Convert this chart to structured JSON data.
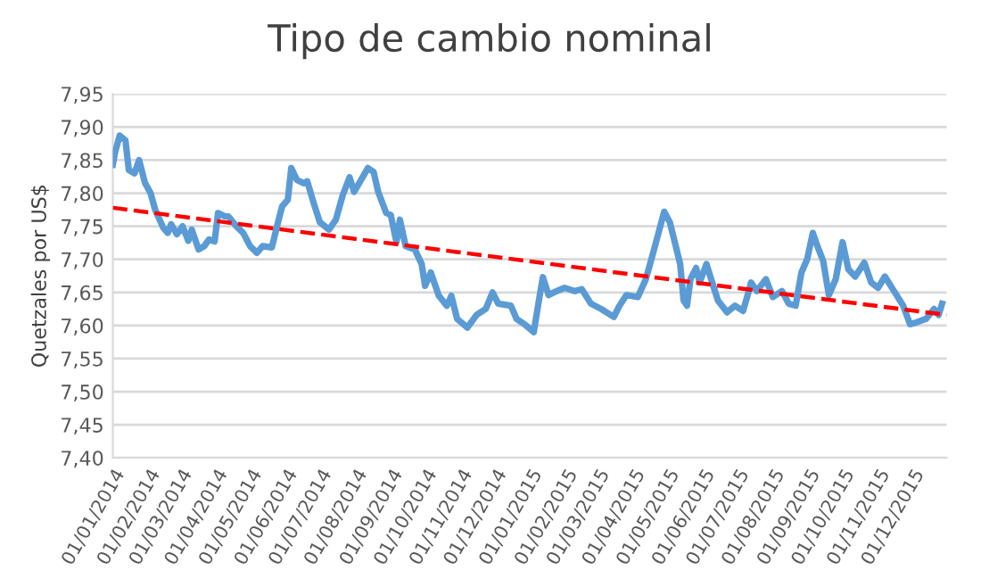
{
  "chart_data": {
    "type": "line",
    "title": "Tipo de cambio nominal",
    "ylabel": "Quetzales por US$",
    "xlim": [
      "2014-01-01",
      "2015-12-31"
    ],
    "xticks": [
      {
        "value": "2014-01-01",
        "label": "01/01/2014"
      },
      {
        "value": "2014-02-01",
        "label": "01/02/2014"
      },
      {
        "value": "2014-03-01",
        "label": "01/03/2014"
      },
      {
        "value": "2014-04-01",
        "label": "01/04/2014"
      },
      {
        "value": "2014-05-01",
        "label": "01/05/2014"
      },
      {
        "value": "2014-06-01",
        "label": "01/06/2014"
      },
      {
        "value": "2014-07-01",
        "label": "01/07/2014"
      },
      {
        "value": "2014-08-01",
        "label": "01/08/2014"
      },
      {
        "value": "2014-09-01",
        "label": "01/09/2014"
      },
      {
        "value": "2014-10-01",
        "label": "01/10/2014"
      },
      {
        "value": "2014-11-01",
        "label": "01/11/2014"
      },
      {
        "value": "2014-12-01",
        "label": "01/12/2014"
      },
      {
        "value": "2015-01-01",
        "label": "01/01/2015"
      },
      {
        "value": "2015-02-01",
        "label": "01/02/2015"
      },
      {
        "value": "2015-03-01",
        "label": "01/03/2015"
      },
      {
        "value": "2015-04-01",
        "label": "01/04/2015"
      },
      {
        "value": "2015-05-01",
        "label": "01/05/2015"
      },
      {
        "value": "2015-06-01",
        "label": "01/06/2015"
      },
      {
        "value": "2015-07-01",
        "label": "01/07/2015"
      },
      {
        "value": "2015-08-01",
        "label": "01/08/2015"
      },
      {
        "value": "2015-09-01",
        "label": "01/09/2015"
      },
      {
        "value": "2015-10-01",
        "label": "01/10/2015"
      },
      {
        "value": "2015-11-01",
        "label": "01/11/2015"
      },
      {
        "value": "2015-12-01",
        "label": "01/12/2015"
      }
    ],
    "ylim": [
      7.4,
      7.95
    ],
    "yticks": [
      {
        "value": 7.4,
        "label": "7,40"
      },
      {
        "value": 7.45,
        "label": "7,45"
      },
      {
        "value": 7.5,
        "label": "7,50"
      },
      {
        "value": 7.55,
        "label": "7,55"
      },
      {
        "value": 7.6,
        "label": "7,60"
      },
      {
        "value": 7.65,
        "label": "7,65"
      },
      {
        "value": 7.7,
        "label": "7,70"
      },
      {
        "value": 7.75,
        "label": "7,75"
      },
      {
        "value": 7.8,
        "label": "7,80"
      },
      {
        "value": 7.85,
        "label": "7,85"
      },
      {
        "value": 7.9,
        "label": "7,90"
      },
      {
        "value": 7.95,
        "label": "7,95"
      }
    ],
    "grid": "y",
    "marker": "none",
    "series": [
      {
        "color": "#5b9bd5",
        "line_style": "solid",
        "x": [
          "2014-01-01",
          "2014-01-03",
          "2014-01-07",
          "2014-01-12",
          "2014-01-15",
          "2014-01-20",
          "2014-01-24",
          "2014-01-29",
          "2014-02-03",
          "2014-02-07",
          "2014-02-14",
          "2014-02-18",
          "2014-02-21",
          "2014-02-26",
          "2014-03-03",
          "2014-03-08",
          "2014-03-11",
          "2014-03-17",
          "2014-03-22",
          "2014-03-26",
          "2014-03-31",
          "2014-04-03",
          "2014-04-09",
          "2014-04-12",
          "2014-04-19",
          "2014-04-25",
          "2014-05-01",
          "2014-05-07",
          "2014-05-12",
          "2014-05-20",
          "2014-05-25",
          "2014-05-29",
          "2014-06-03",
          "2014-06-06",
          "2014-06-11",
          "2014-06-17",
          "2014-06-20",
          "2014-06-26",
          "2014-07-01",
          "2014-07-09",
          "2014-07-15",
          "2014-07-21",
          "2014-07-27",
          "2014-07-31",
          "2014-08-06",
          "2014-08-12",
          "2014-08-17",
          "2014-08-21",
          "2014-08-28",
          "2014-09-01",
          "2014-09-06",
          "2014-09-09",
          "2014-09-14",
          "2014-09-22",
          "2014-09-28",
          "2014-10-01",
          "2014-10-06",
          "2014-10-13",
          "2014-10-20",
          "2014-10-24",
          "2014-10-29",
          "2014-11-07",
          "2014-11-15",
          "2014-11-23",
          "2014-11-29",
          "2014-12-04",
          "2014-12-15",
          "2014-12-20",
          "2014-12-27",
          "2015-01-04",
          "2015-01-09",
          "2015-01-12",
          "2015-01-17",
          "2015-01-24",
          "2015-01-31",
          "2015-02-09",
          "2015-02-15",
          "2015-02-23",
          "2015-03-04",
          "2015-03-15",
          "2015-03-20",
          "2015-03-26",
          "2015-04-05",
          "2015-04-12",
          "2015-04-20",
          "2015-04-28",
          "2015-05-03",
          "2015-05-07",
          "2015-05-12",
          "2015-05-15",
          "2015-05-18",
          "2015-05-21",
          "2015-05-26",
          "2015-05-29",
          "2015-06-04",
          "2015-06-09",
          "2015-06-14",
          "2015-06-22",
          "2015-06-29",
          "2015-07-06",
          "2015-07-10",
          "2015-07-13",
          "2015-07-18",
          "2015-07-26",
          "2015-08-01",
          "2015-08-09",
          "2015-08-15",
          "2015-08-21",
          "2015-08-26",
          "2015-08-31",
          "2015-09-05",
          "2015-09-09",
          "2015-09-14",
          "2015-09-19",
          "2015-09-25",
          "2015-10-01",
          "2015-10-06",
          "2015-10-12",
          "2015-10-20",
          "2015-10-26",
          "2015-11-01",
          "2015-11-07",
          "2015-11-15",
          "2015-11-23",
          "2015-11-29",
          "2015-12-05",
          "2015-12-13",
          "2015-12-20",
          "2015-12-24",
          "2015-12-27"
        ],
        "values": [
          7.843,
          7.862,
          7.887,
          7.88,
          7.835,
          7.83,
          7.85,
          7.816,
          7.8,
          7.775,
          7.748,
          7.74,
          7.753,
          7.738,
          7.75,
          7.728,
          7.745,
          7.715,
          7.72,
          7.73,
          7.727,
          7.77,
          7.765,
          7.765,
          7.75,
          7.74,
          7.72,
          7.71,
          7.72,
          7.718,
          7.753,
          7.78,
          7.79,
          7.838,
          7.82,
          7.815,
          7.818,
          7.783,
          7.756,
          7.745,
          7.76,
          7.797,
          7.824,
          7.802,
          7.82,
          7.838,
          7.832,
          7.802,
          7.77,
          7.767,
          7.726,
          7.76,
          7.72,
          7.715,
          7.693,
          7.66,
          7.68,
          7.645,
          7.63,
          7.645,
          7.61,
          7.597,
          7.616,
          7.625,
          7.65,
          7.633,
          7.63,
          7.61,
          7.602,
          7.59,
          7.643,
          7.673,
          7.646,
          7.652,
          7.657,
          7.652,
          7.655,
          7.633,
          7.625,
          7.613,
          7.63,
          7.646,
          7.643,
          7.67,
          7.72,
          7.772,
          7.756,
          7.728,
          7.693,
          7.638,
          7.63,
          7.67,
          7.687,
          7.665,
          7.693,
          7.665,
          7.638,
          7.62,
          7.63,
          7.622,
          7.646,
          7.665,
          7.652,
          7.67,
          7.643,
          7.652,
          7.633,
          7.63,
          7.68,
          7.7,
          7.74,
          7.72,
          7.698,
          7.646,
          7.67,
          7.726,
          7.685,
          7.674,
          7.695,
          7.665,
          7.657,
          7.674,
          7.652,
          7.63,
          7.602,
          7.605,
          7.61,
          7.625,
          7.616,
          7.633
        ]
      },
      {
        "color": "#ff0000",
        "line_style": "dashed",
        "x": [
          "2014-01-01",
          "2015-12-31"
        ],
        "values": [
          7.778,
          7.616
        ]
      }
    ]
  }
}
